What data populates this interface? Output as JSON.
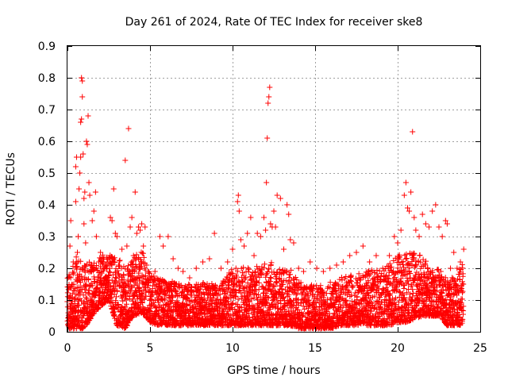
{
  "chart_data": {
    "type": "scatter",
    "title": "Day 261 of 2024, Rate Of TEC Index for receiver ske8",
    "xlabel": "GPS time / hours",
    "ylabel": "ROTI / TECUs",
    "xlim": [
      0,
      25
    ],
    "ylim": [
      0,
      0.9
    ],
    "xticks": [
      0,
      5,
      10,
      15,
      20,
      25
    ],
    "yticks": [
      0,
      0.1,
      0.2,
      0.3,
      0.4,
      0.5,
      0.6,
      0.7,
      0.8,
      0.9
    ],
    "xtick_labels": [
      "0",
      "5",
      "10",
      "15",
      "20",
      "25"
    ],
    "ytick_labels": [
      "0",
      "0.1",
      "0.2",
      "0.3",
      "0.4",
      "0.5",
      "0.6",
      "0.7",
      "0.8",
      "0.9"
    ],
    "grid": true,
    "marker": "+",
    "color": "#ff0000",
    "series": [
      {
        "name": "ROTI",
        "points": [
          [
            0.05,
            0.02
          ],
          [
            0.1,
            0.18
          ],
          [
            0.15,
            0.27
          ],
          [
            0.2,
            0.35
          ],
          [
            0.25,
            0.03
          ],
          [
            0.3,
            0.12
          ],
          [
            0.35,
            0.22
          ],
          [
            0.4,
            0.02
          ],
          [
            0.45,
            0.06
          ],
          [
            0.5,
            0.41
          ],
          [
            0.5,
            0.52
          ],
          [
            0.55,
            0.55
          ],
          [
            0.6,
            0.25
          ],
          [
            0.65,
            0.3
          ],
          [
            0.7,
            0.45
          ],
          [
            0.75,
            0.5
          ],
          [
            0.8,
            0.55
          ],
          [
            0.8,
            0.66
          ],
          [
            0.85,
            0.67
          ],
          [
            0.85,
            0.8
          ],
          [
            0.9,
            0.79
          ],
          [
            0.9,
            0.74
          ],
          [
            0.95,
            0.56
          ],
          [
            1.0,
            0.42
          ],
          [
            1.0,
            0.34
          ],
          [
            1.05,
            0.44
          ],
          [
            1.1,
            0.28
          ],
          [
            1.15,
            0.6
          ],
          [
            1.2,
            0.59
          ],
          [
            1.25,
            0.68
          ],
          [
            1.3,
            0.47
          ],
          [
            1.35,
            0.43
          ],
          [
            1.5,
            0.35
          ],
          [
            1.6,
            0.38
          ],
          [
            1.7,
            0.44
          ],
          [
            1.75,
            0.3
          ],
          [
            1.9,
            0.22
          ],
          [
            2.0,
            0.25
          ],
          [
            2.2,
            0.2
          ],
          [
            2.4,
            0.22
          ],
          [
            2.6,
            0.36
          ],
          [
            2.7,
            0.35
          ],
          [
            2.8,
            0.45
          ],
          [
            2.9,
            0.31
          ],
          [
            3.0,
            0.3
          ],
          [
            3.1,
            0.21
          ],
          [
            3.3,
            0.26
          ],
          [
            3.5,
            0.54
          ],
          [
            3.6,
            0.27
          ],
          [
            3.7,
            0.64
          ],
          [
            3.8,
            0.33
          ],
          [
            3.9,
            0.36
          ],
          [
            4.0,
            0.24
          ],
          [
            4.1,
            0.44
          ],
          [
            4.2,
            0.31
          ],
          [
            4.3,
            0.33
          ],
          [
            4.4,
            0.32
          ],
          [
            4.5,
            0.34
          ],
          [
            4.6,
            0.27
          ],
          [
            4.7,
            0.33
          ],
          [
            4.8,
            0.21
          ],
          [
            5.0,
            0.17
          ],
          [
            5.3,
            0.19
          ],
          [
            5.6,
            0.3
          ],
          [
            5.8,
            0.27
          ],
          [
            6.1,
            0.3
          ],
          [
            6.4,
            0.23
          ],
          [
            6.7,
            0.2
          ],
          [
            7.0,
            0.19
          ],
          [
            7.4,
            0.17
          ],
          [
            7.8,
            0.2
          ],
          [
            8.2,
            0.22
          ],
          [
            8.6,
            0.23
          ],
          [
            8.9,
            0.31
          ],
          [
            9.3,
            0.2
          ],
          [
            9.7,
            0.22
          ],
          [
            10.0,
            0.26
          ],
          [
            10.3,
            0.41
          ],
          [
            10.35,
            0.43
          ],
          [
            10.4,
            0.38
          ],
          [
            10.5,
            0.29
          ],
          [
            10.7,
            0.27
          ],
          [
            10.9,
            0.31
          ],
          [
            11.1,
            0.36
          ],
          [
            11.3,
            0.24
          ],
          [
            11.5,
            0.31
          ],
          [
            11.7,
            0.3
          ],
          [
            11.9,
            0.36
          ],
          [
            12.0,
            0.32
          ],
          [
            12.05,
            0.47
          ],
          [
            12.1,
            0.61
          ],
          [
            12.15,
            0.72
          ],
          [
            12.2,
            0.74
          ],
          [
            12.25,
            0.77
          ],
          [
            12.3,
            0.34
          ],
          [
            12.4,
            0.33
          ],
          [
            12.5,
            0.38
          ],
          [
            12.6,
            0.33
          ],
          [
            12.7,
            0.43
          ],
          [
            12.9,
            0.42
          ],
          [
            13.1,
            0.26
          ],
          [
            13.3,
            0.4
          ],
          [
            13.4,
            0.37
          ],
          [
            13.5,
            0.29
          ],
          [
            13.7,
            0.28
          ],
          [
            14.0,
            0.2
          ],
          [
            14.3,
            0.19
          ],
          [
            14.7,
            0.22
          ],
          [
            15.1,
            0.2
          ],
          [
            15.5,
            0.19
          ],
          [
            15.9,
            0.2
          ],
          [
            16.3,
            0.21
          ],
          [
            16.7,
            0.22
          ],
          [
            17.1,
            0.24
          ],
          [
            17.5,
            0.25
          ],
          [
            17.9,
            0.27
          ],
          [
            18.3,
            0.22
          ],
          [
            18.7,
            0.24
          ],
          [
            19.1,
            0.2
          ],
          [
            19.5,
            0.24
          ],
          [
            19.8,
            0.3
          ],
          [
            20.0,
            0.28
          ],
          [
            20.2,
            0.32
          ],
          [
            20.4,
            0.43
          ],
          [
            20.5,
            0.47
          ],
          [
            20.6,
            0.39
          ],
          [
            20.7,
            0.38
          ],
          [
            20.8,
            0.44
          ],
          [
            20.9,
            0.63
          ],
          [
            21.0,
            0.36
          ],
          [
            21.1,
            0.32
          ],
          [
            21.3,
            0.3
          ],
          [
            21.5,
            0.37
          ],
          [
            21.7,
            0.34
          ],
          [
            21.9,
            0.33
          ],
          [
            22.1,
            0.38
          ],
          [
            22.3,
            0.4
          ],
          [
            22.5,
            0.33
          ],
          [
            22.7,
            0.3
          ],
          [
            22.9,
            0.35
          ],
          [
            23.0,
            0.34
          ],
          [
            23.2,
            0.2
          ],
          [
            23.4,
            0.25
          ],
          [
            23.6,
            0.2
          ],
          [
            23.8,
            0.22
          ],
          [
            24.0,
            0.26
          ]
        ],
        "dense_band_envelope": [
          [
            0.0,
            0.01,
            0.17
          ],
          [
            0.5,
            0.01,
            0.24
          ],
          [
            1.0,
            0.01,
            0.22
          ],
          [
            1.5,
            0.05,
            0.22
          ],
          [
            2.0,
            0.08,
            0.24
          ],
          [
            2.5,
            0.1,
            0.25
          ],
          [
            3.0,
            0.02,
            0.24
          ],
          [
            3.5,
            0.01,
            0.2
          ],
          [
            4.0,
            0.05,
            0.24
          ],
          [
            4.5,
            0.06,
            0.26
          ],
          [
            5.0,
            0.03,
            0.18
          ],
          [
            5.5,
            0.02,
            0.17
          ],
          [
            6.0,
            0.02,
            0.16
          ],
          [
            6.5,
            0.02,
            0.16
          ],
          [
            7.0,
            0.02,
            0.15
          ],
          [
            7.5,
            0.02,
            0.15
          ],
          [
            8.0,
            0.02,
            0.15
          ],
          [
            8.5,
            0.02,
            0.16
          ],
          [
            9.0,
            0.02,
            0.15
          ],
          [
            9.5,
            0.02,
            0.17
          ],
          [
            10.0,
            0.02,
            0.2
          ],
          [
            10.5,
            0.02,
            0.21
          ],
          [
            11.0,
            0.02,
            0.2
          ],
          [
            11.5,
            0.02,
            0.21
          ],
          [
            12.0,
            0.02,
            0.22
          ],
          [
            12.5,
            0.02,
            0.22
          ],
          [
            13.0,
            0.02,
            0.2
          ],
          [
            13.5,
            0.02,
            0.2
          ],
          [
            14.0,
            0.01,
            0.16
          ],
          [
            14.5,
            0.01,
            0.15
          ],
          [
            15.0,
            0.01,
            0.15
          ],
          [
            15.5,
            0.01,
            0.15
          ],
          [
            16.0,
            0.01,
            0.16
          ],
          [
            16.5,
            0.02,
            0.17
          ],
          [
            17.0,
            0.02,
            0.18
          ],
          [
            17.5,
            0.02,
            0.18
          ],
          [
            18.0,
            0.02,
            0.19
          ],
          [
            18.5,
            0.02,
            0.2
          ],
          [
            19.0,
            0.02,
            0.19
          ],
          [
            19.5,
            0.02,
            0.22
          ],
          [
            20.0,
            0.03,
            0.24
          ],
          [
            20.5,
            0.03,
            0.25
          ],
          [
            21.0,
            0.04,
            0.25
          ],
          [
            21.5,
            0.05,
            0.24
          ],
          [
            22.0,
            0.05,
            0.2
          ],
          [
            22.5,
            0.05,
            0.2
          ],
          [
            23.0,
            0.02,
            0.17
          ],
          [
            23.5,
            0.02,
            0.18
          ],
          [
            24.0,
            0.02,
            0.22
          ]
        ]
      }
    ]
  }
}
